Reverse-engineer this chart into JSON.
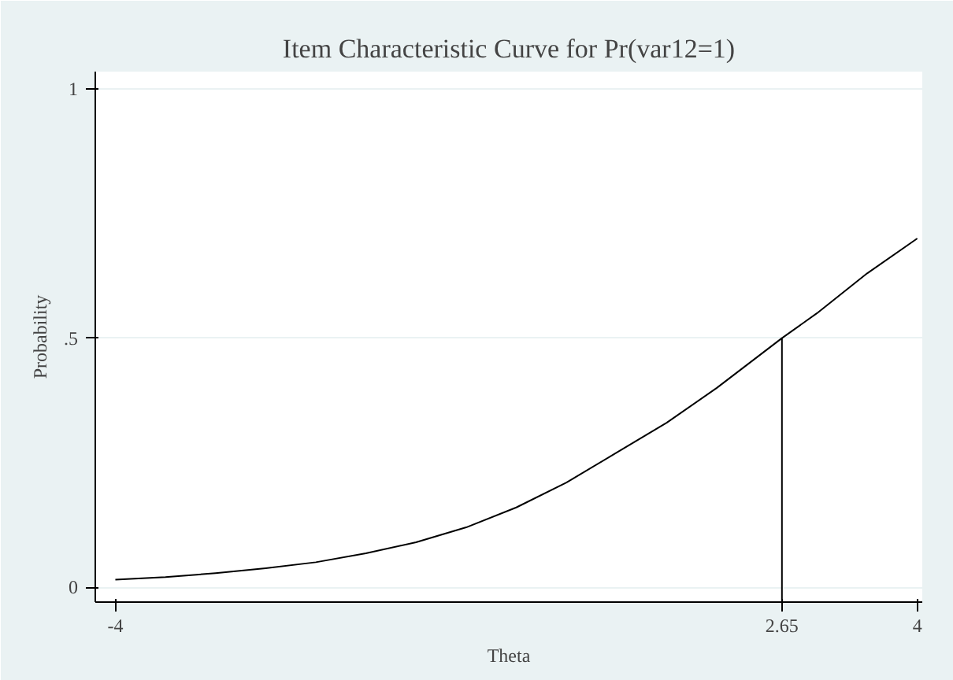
{
  "chart_data": {
    "type": "line",
    "title": "Item Characteristic Curve for Pr(var12=1)",
    "xlabel": "Theta",
    "ylabel": "Probability",
    "x": [
      -4,
      -3.5,
      -3,
      -2.5,
      -2,
      -1.5,
      -1,
      -0.5,
      0,
      0.5,
      1,
      1.5,
      2,
      2.65,
      3,
      3.5,
      4
    ],
    "series": [
      {
        "color": "#000000",
        "values": [
          0.015,
          0.02,
          0.028,
          0.038,
          0.05,
          0.068,
          0.09,
          0.12,
          0.16,
          0.21,
          0.27,
          0.33,
          0.4,
          0.5,
          0.55,
          0.63,
          0.7
        ]
      }
    ],
    "xlim": [
      -4.2,
      4.05
    ],
    "ylim": [
      -0.03,
      1.035
    ],
    "xticks": [
      -4,
      2.65,
      4
    ],
    "yticks": [
      0,
      {
        "value": 0.5,
        "label": ".5"
      },
      1
    ],
    "ref_lines": [
      {
        "axis": "x",
        "value": 2.65,
        "color": "#000000"
      }
    ],
    "grid": "y",
    "marker": "none",
    "line_style": "solid"
  }
}
